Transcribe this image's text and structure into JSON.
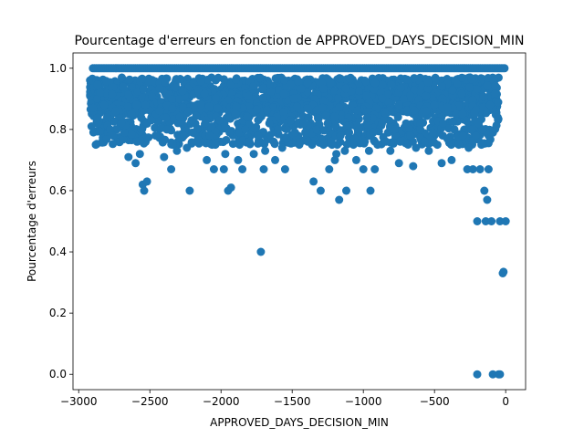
{
  "chart_data": {
    "type": "scatter",
    "title": "Pourcentage d'erreurs en fonction de APPROVED_DAYS_DECISION_MIN",
    "xlabel": "APPROVED_DAYS_DECISION_MIN",
    "ylabel": "Pourcentage d'erreurs",
    "xlim": [
      -3040,
      140
    ],
    "ylim": [
      -0.05,
      1.05
    ],
    "xticks": [
      -3000,
      -2500,
      -2000,
      -1500,
      -1000,
      -500,
      0
    ],
    "xtick_labels": [
      "−3000",
      "−2500",
      "−2000",
      "−1500",
      "−1000",
      "−500",
      "0"
    ],
    "yticks": [
      0.0,
      0.2,
      0.4,
      0.6,
      0.8,
      1.0
    ],
    "ytick_labels": [
      "0.0",
      "0.2",
      "0.4",
      "0.6",
      "0.8",
      "1.0"
    ],
    "grid": false,
    "legend": "none",
    "marker_color": "#1f77b4",
    "series": [
      {
        "points": [
          [
            -2910,
            0.81
          ],
          [
            -2880,
            0.75
          ],
          [
            -2650,
            0.71
          ],
          [
            -2600,
            0.69
          ],
          [
            -2570,
            0.72
          ],
          [
            -2550,
            0.62
          ],
          [
            -2540,
            0.6
          ],
          [
            -2520,
            0.63
          ],
          [
            -2400,
            0.71
          ],
          [
            -2350,
            0.67
          ],
          [
            -2220,
            0.6
          ],
          [
            -2100,
            0.7
          ],
          [
            -2050,
            0.67
          ],
          [
            -1980,
            0.67
          ],
          [
            -1950,
            0.6
          ],
          [
            -1930,
            0.61
          ],
          [
            -1880,
            0.7
          ],
          [
            -1850,
            0.67
          ],
          [
            -1720,
            0.4
          ],
          [
            -1700,
            0.67
          ],
          [
            -1620,
            0.7
          ],
          [
            -1550,
            0.67
          ],
          [
            -1350,
            0.63
          ],
          [
            -1300,
            0.6
          ],
          [
            -1240,
            0.67
          ],
          [
            -1200,
            0.7
          ],
          [
            -1170,
            0.57
          ],
          [
            -1120,
            0.6
          ],
          [
            -1050,
            0.7
          ],
          [
            -1000,
            0.67
          ],
          [
            -950,
            0.6
          ],
          [
            -920,
            0.67
          ],
          [
            -750,
            0.69
          ],
          [
            -650,
            0.68
          ],
          [
            -450,
            0.69
          ],
          [
            -380,
            0.7
          ],
          [
            -270,
            0.67
          ],
          [
            -230,
            0.67
          ],
          [
            -200,
            0.5
          ],
          [
            -180,
            0.67
          ],
          [
            -150,
            0.6
          ],
          [
            -140,
            0.5
          ],
          [
            -130,
            0.57
          ],
          [
            -120,
            0.67
          ],
          [
            -100,
            0.5
          ],
          [
            -40,
            0.5
          ],
          [
            0,
            0.5
          ],
          [
            -20,
            0.33
          ],
          [
            -15,
            0.335
          ],
          [
            -200,
            0.0
          ],
          [
            -90,
            0.0
          ],
          [
            -50,
            0.0
          ],
          [
            -40,
            0.0
          ],
          [
            -2900,
            0.87
          ],
          [
            -2870,
            0.9
          ],
          [
            -2850,
            0.92
          ],
          [
            -2820,
            0.88
          ],
          [
            -2800,
            0.84
          ],
          [
            -2780,
            0.8
          ],
          [
            -2760,
            0.78
          ],
          [
            -2740,
            0.86
          ],
          [
            -2700,
            0.82
          ],
          [
            -2680,
            0.79
          ],
          [
            -2630,
            0.85
          ],
          [
            -2590,
            0.76
          ],
          [
            -2560,
            0.8
          ],
          [
            -2530,
            0.88
          ],
          [
            -2490,
            0.83
          ],
          [
            -2460,
            0.78
          ],
          [
            -2430,
            0.86
          ],
          [
            -2380,
            0.8
          ],
          [
            -2340,
            0.75
          ],
          [
            -2310,
            0.73
          ],
          [
            -2290,
            0.84
          ],
          [
            -2260,
            0.78
          ],
          [
            -2240,
            0.74
          ],
          [
            -2200,
            0.79
          ],
          [
            -2170,
            0.76
          ],
          [
            -2140,
            0.88
          ],
          [
            -2110,
            0.82
          ],
          [
            -2080,
            0.78
          ],
          [
            -2040,
            0.75
          ],
          [
            -2010,
            0.83
          ],
          [
            -1970,
            0.72
          ],
          [
            -1940,
            0.79
          ],
          [
            -1900,
            0.85
          ],
          [
            -1870,
            0.75
          ],
          [
            -1830,
            0.8
          ],
          [
            -1800,
            0.76
          ],
          [
            -1770,
            0.72
          ],
          [
            -1740,
            0.78
          ],
          [
            -1690,
            0.73
          ],
          [
            -1660,
            0.82
          ],
          [
            -1630,
            0.76
          ],
          [
            -1600,
            0.8
          ],
          [
            -1570,
            0.74
          ],
          [
            -1540,
            0.77
          ],
          [
            -1510,
            0.83
          ],
          [
            -1480,
            0.79
          ],
          [
            -1450,
            0.75
          ],
          [
            -1420,
            0.82
          ],
          [
            -1390,
            0.76
          ],
          [
            -1360,
            0.75
          ],
          [
            -1330,
            0.8
          ],
          [
            -1280,
            0.75
          ],
          [
            -1250,
            0.82
          ],
          [
            -1220,
            0.75
          ],
          [
            -1190,
            0.72
          ],
          [
            -1160,
            0.78
          ],
          [
            -1130,
            0.73
          ],
          [
            -1100,
            0.79
          ],
          [
            -1070,
            0.75
          ],
          [
            -1030,
            0.8
          ],
          [
            -990,
            0.76
          ],
          [
            -960,
            0.73
          ],
          [
            -930,
            0.79
          ],
          [
            -900,
            0.75
          ],
          [
            -870,
            0.82
          ],
          [
            -840,
            0.76
          ],
          [
            -810,
            0.73
          ],
          [
            -780,
            0.8
          ],
          [
            -740,
            0.76
          ],
          [
            -700,
            0.82
          ],
          [
            -670,
            0.78
          ],
          [
            -630,
            0.74
          ],
          [
            -600,
            0.8
          ],
          [
            -570,
            0.76
          ],
          [
            -540,
            0.73
          ],
          [
            -510,
            0.79
          ],
          [
            -480,
            0.75
          ],
          [
            -440,
            0.82
          ],
          [
            -410,
            0.77
          ],
          [
            -360,
            0.8
          ],
          [
            -330,
            0.75
          ],
          [
            -300,
            0.78
          ],
          [
            -260,
            0.74
          ],
          [
            -240,
            0.8
          ],
          [
            -210,
            0.78
          ],
          [
            -190,
            0.82
          ],
          [
            -170,
            0.75
          ],
          [
            -160,
            0.8
          ],
          [
            -110,
            0.88
          ]
        ]
      }
    ]
  }
}
